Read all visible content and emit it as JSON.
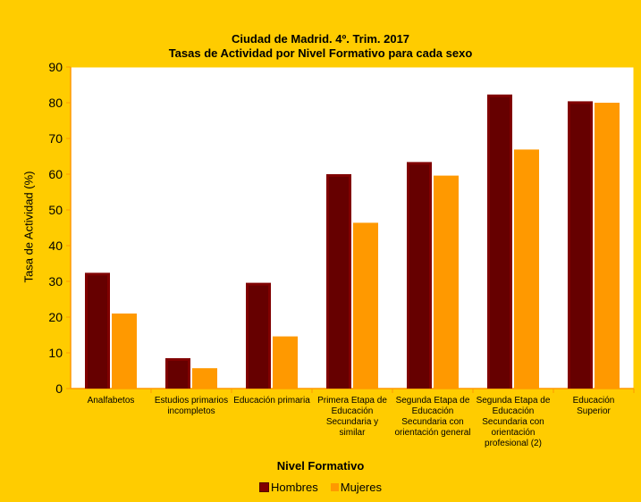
{
  "chart_data": {
    "type": "bar",
    "title": "Ciudad de Madrid. 4º. Trim. 2017",
    "subtitle": "Tasas de Actividad por Nivel Formativo para cada sexo",
    "xlabel": "Nivel Formativo",
    "ylabel": "Tasa de Actividad (%)",
    "ylim": [
      0,
      90
    ],
    "yticks": [
      0,
      10,
      20,
      30,
      40,
      50,
      60,
      70,
      80,
      90
    ],
    "grid": false,
    "legend": "bottom",
    "categories": [
      "Analfabetos",
      "Estudios primarios incompletos",
      "Educación primaria",
      "Primera Etapa de Educación Secundaria y similar",
      "Segunda Etapa de Educación Secundaria con orientación general",
      "Segunda Etapa de Educación Secundaria con orientación profesional (2)",
      "Educación Superior"
    ],
    "series": [
      {
        "name": "Hombres",
        "color": "#800000",
        "values": [
          32.4,
          8.5,
          29.6,
          60.0,
          63.4,
          82.3,
          80.4
        ]
      },
      {
        "name": "Mujeres",
        "color": "#ff9900",
        "values": [
          21.0,
          5.7,
          14.6,
          46.4,
          59.6,
          66.9,
          80.0
        ]
      }
    ]
  }
}
